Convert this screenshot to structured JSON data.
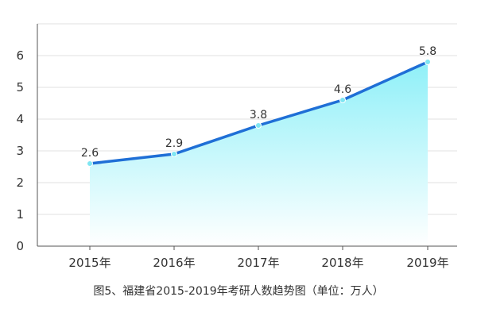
{
  "chart_data": {
    "type": "area",
    "caption": "图5、福建省2015-2019年考研人数趋势图（单位：万人）",
    "categories": [
      "2015年",
      "2016年",
      "2017年",
      "2018年",
      "2019年"
    ],
    "series": [
      {
        "values": [
          2.6,
          2.9,
          3.8,
          4.6,
          5.8
        ]
      }
    ],
    "data_labels": [
      "2.6",
      "2.9",
      "3.8",
      "4.6",
      "5.8"
    ],
    "y_ticks": [
      "0",
      "1",
      "2",
      "3",
      "4",
      "5",
      "6"
    ],
    "ylim": [
      0,
      7
    ],
    "grid": true,
    "colors": {
      "line": "#1f6fd6",
      "area_top": "#8ff0f8",
      "area_bottom": "#ffffff",
      "grid": "#e2e2e2",
      "axis": "#555555",
      "marker": "#7fe6f2"
    }
  }
}
